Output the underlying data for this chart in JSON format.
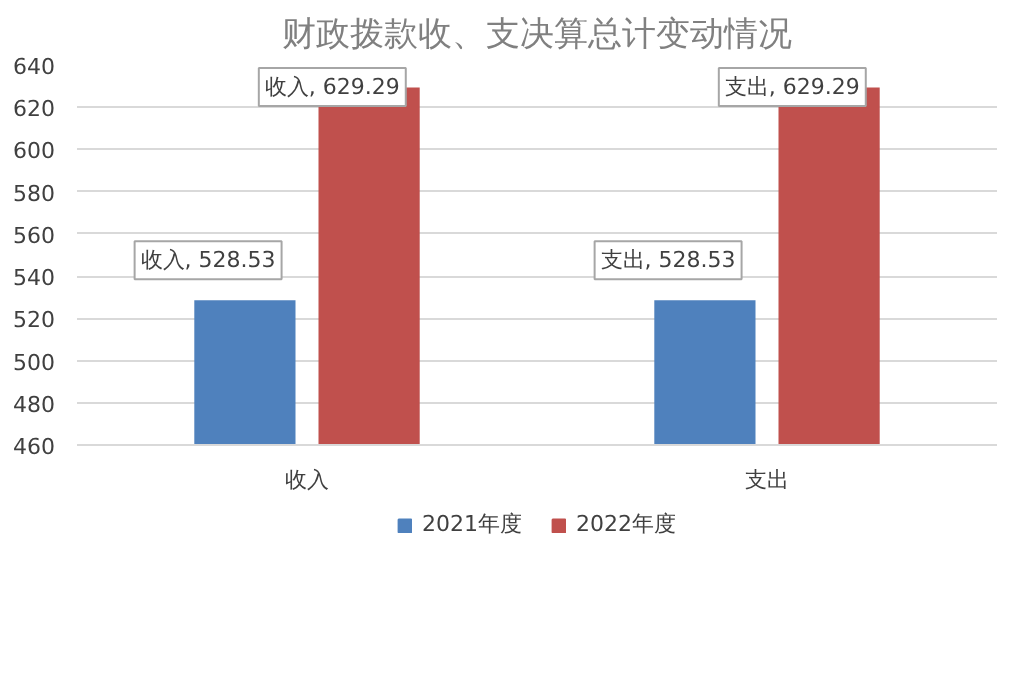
{
  "chart_data": {
    "type": "bar",
    "title": "财政拨款收、支决算总计变动情况",
    "categories": [
      "收入",
      "支出"
    ],
    "series": [
      {
        "name": "2021年度",
        "color": "#4f81bd",
        "values": [
          528.53,
          528.53
        ],
        "value_labels": [
          "收入, 528.53",
          "支出, 528.53"
        ]
      },
      {
        "name": "2022年度",
        "color": "#c0504d",
        "values": [
          629.29,
          629.29
        ],
        "value_labels": [
          "收入, 629.29",
          "支出, 629.29"
        ]
      }
    ],
    "ylim": [
      460,
      640
    ],
    "yticks": [
      460,
      480,
      500,
      520,
      540,
      560,
      580,
      600,
      620,
      640
    ],
    "grid": "y",
    "legend": "bottom"
  }
}
